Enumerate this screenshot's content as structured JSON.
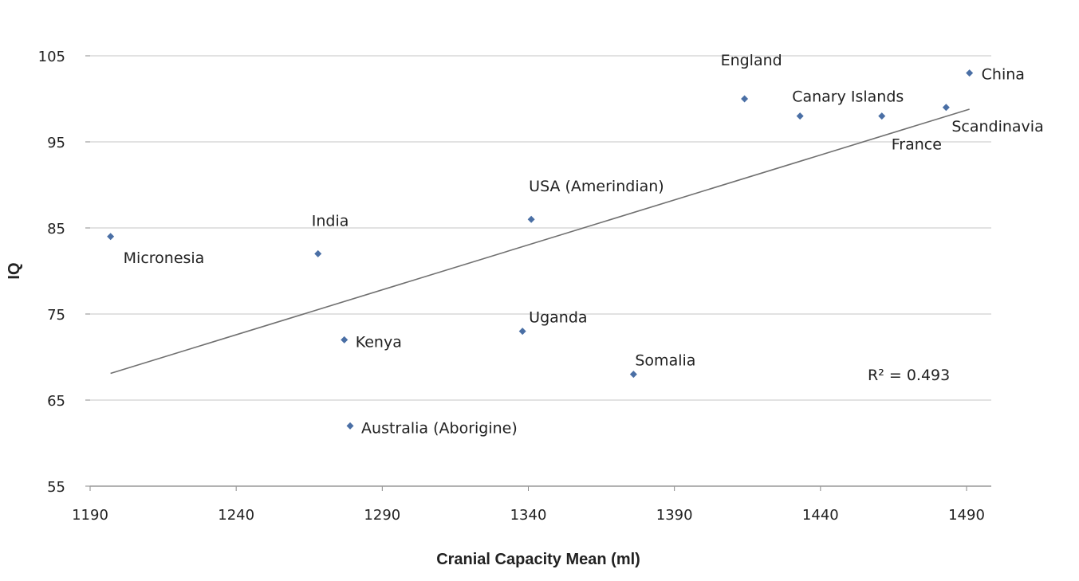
{
  "chart_data": {
    "type": "scatter",
    "title": "",
    "xlabel": "Cranial Capacity Mean (ml)",
    "ylabel": "IQ",
    "xlim": [
      1190,
      1490
    ],
    "ylim": [
      55,
      105
    ],
    "xticks": [
      1190,
      1240,
      1290,
      1340,
      1390,
      1440,
      1490
    ],
    "yticks": [
      55,
      65,
      75,
      85,
      95,
      105
    ],
    "grid": "horizontal",
    "points": [
      {
        "label": "Micronesia",
        "x": 1197,
        "y": 84
      },
      {
        "label": "India",
        "x": 1268,
        "y": 82
      },
      {
        "label": "Kenya",
        "x": 1277,
        "y": 72
      },
      {
        "label": "Australia (Aborigine)",
        "x": 1279,
        "y": 62
      },
      {
        "label": "Uganda",
        "x": 1338,
        "y": 73
      },
      {
        "label": "USA (Amerindian)",
        "x": 1341,
        "y": 86
      },
      {
        "label": "Somalia",
        "x": 1376,
        "y": 68
      },
      {
        "label": "England",
        "x": 1414,
        "y": 100
      },
      {
        "label": "Canary Islands",
        "x": 1433,
        "y": 98
      },
      {
        "label": "France",
        "x": 1461,
        "y": 98
      },
      {
        "label": "Scandinavia",
        "x": 1483,
        "y": 99
      },
      {
        "label": "China",
        "x": 1491,
        "y": 103
      }
    ],
    "trendline": {
      "type": "linear",
      "x": [
        1197,
        1491
      ],
      "y": [
        68.1,
        98.8
      ]
    },
    "annotation": "R² = 0.493",
    "colors": {
      "point": "#4a6fa5",
      "trendline": "#707070",
      "grid": "#d9d9d9"
    }
  }
}
